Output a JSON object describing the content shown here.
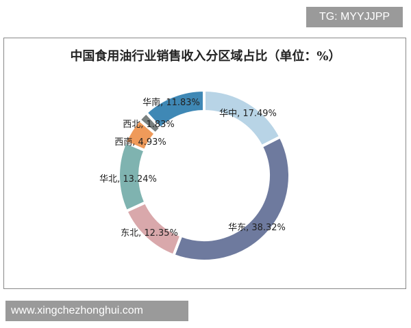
{
  "tag": "TG: MYYJJPP",
  "watermark": "www.xingchezhonghui.com",
  "chart_data": {
    "type": "pie",
    "donut": true,
    "title": "中国食用油行业销售收入分区域占比（单位：%）",
    "categories": [
      "华中",
      "华东",
      "东北",
      "华北",
      "西南",
      "西北",
      "华南"
    ],
    "values": [
      17.49,
      38.32,
      12.35,
      13.24,
      4.93,
      1.83,
      11.83
    ],
    "labels": [
      "华中, 17.49%",
      "华东, 38.32%",
      "东北, 12.35%",
      "华北, 13.24%",
      "西南, 4.93%",
      "西北, 1.83%",
      "华南, 11.83%"
    ],
    "colors": [
      "#b8d4e6",
      "#6e7a9e",
      "#d9a8ab",
      "#7fb3b0",
      "#ef9a5a",
      "#7a807f",
      "#3f88b5"
    ],
    "legend": "none"
  }
}
